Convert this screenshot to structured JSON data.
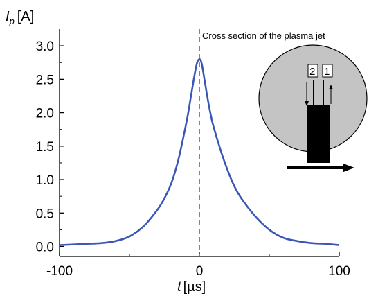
{
  "chart_data": {
    "type": "line",
    "title": "",
    "xlabel": {
      "symbol": "t",
      "unit": "[µs]"
    },
    "ylabel": {
      "symbol": "I",
      "subscript": "p",
      "unit": "[A]"
    },
    "xlim": [
      -100,
      100
    ],
    "ylim": [
      -0.15,
      3.25
    ],
    "x_ticks": [
      -100,
      0,
      100
    ],
    "x_tick_labels": [
      "-100",
      "0",
      "100"
    ],
    "y_ticks": [
      0.0,
      0.5,
      1.0,
      1.5,
      2.0,
      2.5,
      3.0
    ],
    "y_tick_labels": [
      "0.0",
      "0.5",
      "1.0",
      "1.5",
      "2.0",
      "2.5",
      "3.0"
    ],
    "grid": false,
    "series": [
      {
        "color": "#3a57b5",
        "x": [
          -100,
          -90,
          -80,
          -70,
          -60,
          -50,
          -40,
          -30,
          -25,
          -20,
          -15,
          -10,
          -8,
          -6,
          -4,
          -2,
          -1,
          0,
          1,
          2,
          4,
          6,
          8,
          10,
          15,
          20,
          25,
          30,
          40,
          50,
          60,
          70,
          80,
          90,
          100
        ],
        "y": [
          0.02,
          0.03,
          0.04,
          0.05,
          0.08,
          0.15,
          0.3,
          0.55,
          0.72,
          0.95,
          1.3,
          1.78,
          2.0,
          2.25,
          2.5,
          2.72,
          2.78,
          2.8,
          2.78,
          2.7,
          2.45,
          2.2,
          1.98,
          1.8,
          1.45,
          1.15,
          0.9,
          0.72,
          0.45,
          0.25,
          0.13,
          0.08,
          0.05,
          0.04,
          0.02
        ]
      }
    ],
    "reference_line": {
      "x": 0,
      "color": "#e8603c",
      "style": "dashed"
    },
    "inset": {
      "caption": "Cross section of the plasma jet",
      "probe_labels": [
        "2",
        "1"
      ],
      "disk_color": "#c4c4c4"
    }
  }
}
